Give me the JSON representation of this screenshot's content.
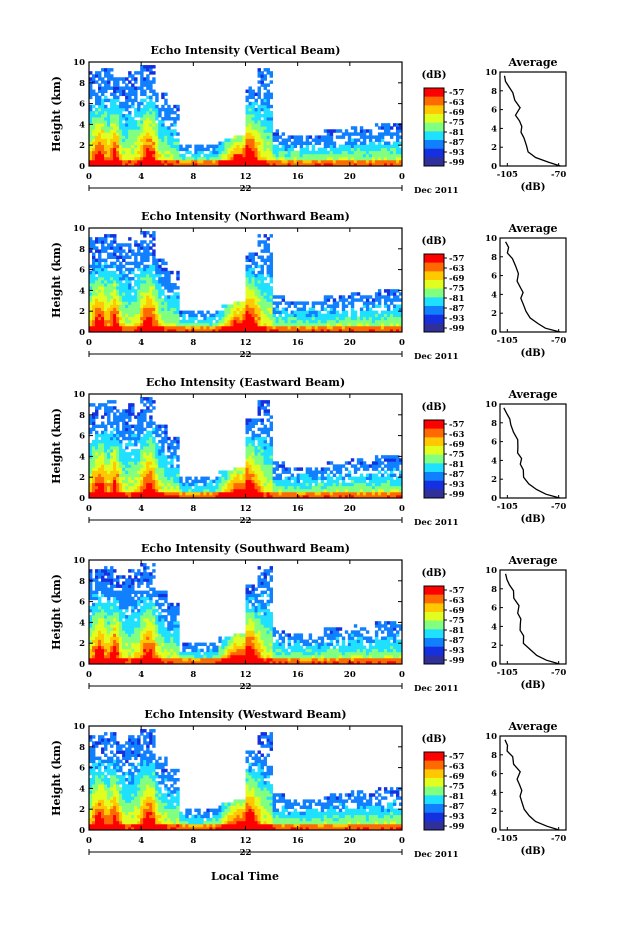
{
  "figure": {
    "xlabel_bottom": "Local Time",
    "date_label": "Dec 2011",
    "day_label": "22"
  },
  "colorbar": {
    "unit": "(dB)",
    "ticks": [
      "-57",
      "-63",
      "-69",
      "-75",
      "-81",
      "-87",
      "-93",
      "-99"
    ],
    "colors": [
      "#ff0000",
      "#ff6a00",
      "#ffc800",
      "#e0ff20",
      "#80ff80",
      "#20e0ff",
      "#1080ff",
      "#1430e0",
      "#30309a"
    ]
  },
  "chart_data": [
    {
      "type": "heatmap",
      "title": "Echo Intensity (Vertical Beam)",
      "ylabel": "Height (km)",
      "xticks": [
        "0",
        "4",
        "8",
        "12",
        "16",
        "20",
        "0"
      ],
      "yticks": [
        "0",
        "2",
        "4",
        "6",
        "8",
        "10"
      ],
      "xlim": [
        0,
        24
      ],
      "ylim": [
        0,
        10
      ],
      "echo_tops_km": [
        9,
        9.5,
        8.5,
        9,
        9.8,
        7,
        6,
        2,
        2,
        2,
        2.5,
        3,
        7.5,
        9.5,
        3.5,
        3,
        3,
        3,
        3.5,
        3.5,
        3.8,
        3.5,
        4,
        4
      ]
    },
    {
      "type": "heatmap",
      "title": "Echo Intensity (Northward Beam)",
      "ylabel": "Height (km)",
      "xticks": [
        "0",
        "4",
        "8",
        "12",
        "16",
        "20",
        "0"
      ],
      "yticks": [
        "0",
        "2",
        "4",
        "6",
        "8",
        "10"
      ],
      "xlim": [
        0,
        24
      ],
      "ylim": [
        0,
        10
      ],
      "echo_tops_km": [
        9,
        9.5,
        8.5,
        9,
        9.8,
        7,
        6,
        2,
        2,
        2,
        2.5,
        3,
        7.5,
        9.5,
        3.5,
        3,
        3,
        3,
        3.5,
        3.5,
        3.8,
        3.5,
        4,
        4
      ]
    },
    {
      "type": "heatmap",
      "title": "Echo Intensity (Eastward Beam)",
      "ylabel": "Height (km)",
      "xticks": [
        "0",
        "4",
        "8",
        "12",
        "16",
        "20",
        "0"
      ],
      "yticks": [
        "0",
        "2",
        "4",
        "6",
        "8",
        "10"
      ],
      "xlim": [
        0,
        24
      ],
      "ylim": [
        0,
        10
      ],
      "echo_tops_km": [
        9,
        9.5,
        8.5,
        9,
        9.8,
        7,
        6,
        2,
        2,
        2,
        2.5,
        3,
        7.5,
        9.5,
        3.5,
        3,
        3,
        3,
        3.5,
        3.5,
        3.8,
        3.5,
        4,
        4
      ]
    },
    {
      "type": "heatmap",
      "title": "Echo Intensity (Southward Beam)",
      "ylabel": "Height (km)",
      "xticks": [
        "0",
        "4",
        "8",
        "12",
        "16",
        "20",
        "0"
      ],
      "yticks": [
        "0",
        "2",
        "4",
        "6",
        "8",
        "10"
      ],
      "xlim": [
        0,
        24
      ],
      "ylim": [
        0,
        10
      ],
      "echo_tops_km": [
        9,
        9.5,
        8.5,
        9,
        9.8,
        7,
        6,
        2,
        2,
        2,
        2.5,
        3,
        7.5,
        9.5,
        3.5,
        3,
        3,
        3,
        3.5,
        3.5,
        3.8,
        3.5,
        4,
        4
      ]
    },
    {
      "type": "heatmap",
      "title": "Echo Intensity (Westward Beam)",
      "ylabel": "Height (km)",
      "xticks": [
        "0",
        "4",
        "8",
        "12",
        "16",
        "20",
        "0"
      ],
      "yticks": [
        "0",
        "2",
        "4",
        "6",
        "8",
        "10"
      ],
      "xlim": [
        0,
        24
      ],
      "ylim": [
        0,
        10
      ],
      "echo_tops_km": [
        9,
        9.5,
        8.5,
        9,
        9.8,
        7,
        6,
        2,
        2,
        2,
        2.5,
        3,
        7.5,
        9.5,
        3.5,
        3,
        3,
        3,
        3.5,
        3.5,
        3.8,
        3.5,
        4,
        4
      ]
    },
    {
      "type": "line",
      "title": "Average",
      "xlabel": "(dB)",
      "xticks": [
        "-105",
        "-70"
      ],
      "yticks": [
        "0",
        "2",
        "4",
        "6",
        "8",
        "10"
      ],
      "xlim": [
        -110,
        -65
      ],
      "ylim": [
        0,
        10
      ],
      "x": [
        -70,
        -78,
        -85,
        -90,
        -93,
        -94,
        -96,
        -95,
        -97,
        -99,
        -97,
        -100,
        -102,
        -104,
        -105,
        -107
      ],
      "y": [
        0,
        0.4,
        0.9,
        1.5,
        2.2,
        3.0,
        3.6,
        4.2,
        4.8,
        5.4,
        6.2,
        7.0,
        7.8,
        8.4,
        9.0,
        9.6
      ]
    }
  ]
}
